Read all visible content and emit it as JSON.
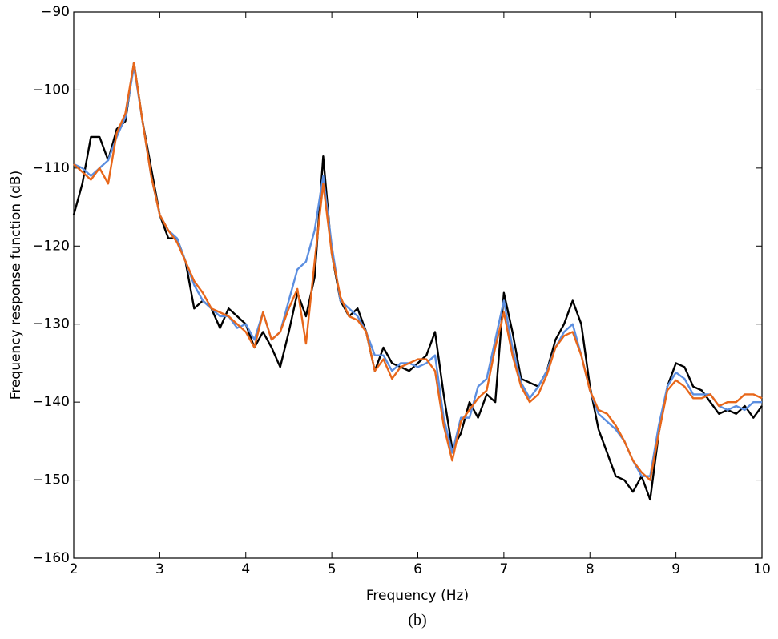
{
  "chart_data": {
    "type": "line",
    "xlabel": "Frequency (Hz)",
    "ylabel": "Frequency response function (dB)",
    "caption": "(b)",
    "x": [
      2.0,
      2.1,
      2.2,
      2.3,
      2.4,
      2.5,
      2.6,
      2.7,
      2.8,
      2.9,
      3.0,
      3.1,
      3.2,
      3.3,
      3.4,
      3.5,
      3.6,
      3.7,
      3.8,
      3.9,
      4.0,
      4.1,
      4.2,
      4.3,
      4.4,
      4.5,
      4.6,
      4.7,
      4.8,
      4.9,
      5.0,
      5.1,
      5.2,
      5.3,
      5.4,
      5.5,
      5.6,
      5.7,
      5.8,
      5.9,
      6.0,
      6.1,
      6.2,
      6.3,
      6.4,
      6.5,
      6.6,
      6.7,
      6.8,
      6.9,
      7.0,
      7.1,
      7.2,
      7.3,
      7.4,
      7.5,
      7.6,
      7.7,
      7.8,
      7.9,
      8.0,
      8.1,
      8.2,
      8.3,
      8.4,
      8.5,
      8.6,
      8.7,
      8.8,
      8.9,
      9.0,
      9.1,
      9.2,
      9.3,
      9.4,
      9.5,
      9.6,
      9.7,
      9.8,
      9.9,
      10.0
    ],
    "series": [
      {
        "color": "#000000",
        "values": [
          -116,
          -112,
          -106,
          -106,
          -109,
          -105,
          -104,
          -96.5,
          -104,
          -110,
          -116,
          -119,
          -119,
          -122,
          -128,
          -127,
          -128,
          -130.5,
          -128,
          -129,
          -130,
          -133,
          -131,
          -133,
          -135.5,
          -131,
          -126,
          -129,
          -124,
          -108.5,
          -121,
          -127,
          -129,
          -128,
          -131,
          -136,
          -133,
          -135,
          -135.5,
          -136,
          -135,
          -134,
          -131,
          -139,
          -146,
          -144,
          -140,
          -142,
          -139,
          -140,
          -126,
          -131,
          -137,
          -137.5,
          -138,
          -136,
          -132,
          -130,
          -127,
          -130,
          -138,
          -143.5,
          -146.5,
          -149.5,
          -150,
          -151.5,
          -149.5,
          -152.5,
          -144,
          -138,
          -135,
          -135.5,
          -138,
          -138.5,
          -140,
          -141.5,
          -141,
          -141.5,
          -140.5,
          -142,
          -140.5
        ]
      },
      {
        "color": "#5b8ee0",
        "values": [
          -109.5,
          -110,
          -111,
          -110,
          -109,
          -106,
          -103.5,
          -97,
          -104,
          -111,
          -116,
          -118,
          -119,
          -122,
          -125,
          -127,
          -128,
          -129,
          -129,
          -130.5,
          -130,
          -132,
          -128.5,
          -132,
          -131,
          -127,
          -123,
          -122,
          -118,
          -111,
          -120,
          -127,
          -128,
          -129,
          -131,
          -134,
          -134,
          -136,
          -135,
          -135,
          -135.5,
          -135,
          -134,
          -142,
          -146.5,
          -142,
          -142,
          -138,
          -137,
          -132,
          -127,
          -133,
          -137.5,
          -139.5,
          -138,
          -136,
          -133,
          -131,
          -130,
          -134,
          -138.5,
          -141.5,
          -142.5,
          -143.5,
          -145,
          -147.5,
          -149.5,
          -149.5,
          -143,
          -138,
          -136.2,
          -137,
          -139,
          -139,
          -139,
          -140.5,
          -141,
          -140.5,
          -141,
          -140,
          -140
        ]
      },
      {
        "color": "#e8671a",
        "values": [
          -109.5,
          -110.5,
          -111.5,
          -110,
          -112,
          -105.5,
          -103,
          -96.5,
          -104,
          -111,
          -116,
          -118,
          -119.5,
          -122,
          -124.5,
          -126,
          -128,
          -128.5,
          -129,
          -130,
          -131,
          -133,
          -128.5,
          -132,
          -131,
          -128,
          -125.5,
          -132.5,
          -122,
          -112,
          -121,
          -126.5,
          -129,
          -129.5,
          -131,
          -136,
          -134.5,
          -137,
          -135.5,
          -135,
          -134.5,
          -134.5,
          -136,
          -143,
          -147.5,
          -142.5,
          -141,
          -139.5,
          -138.5,
          -133,
          -128.5,
          -134,
          -138,
          -140,
          -139,
          -136.5,
          -133,
          -131.5,
          -131,
          -134,
          -138.5,
          -141,
          -141.5,
          -143,
          -145,
          -147.5,
          -149,
          -150,
          -144,
          -138.5,
          -137.2,
          -138,
          -139.5,
          -139.5,
          -139,
          -140.5,
          -140,
          -140,
          -139,
          -139,
          -139.5
        ]
      }
    ],
    "xlim": [
      2,
      10
    ],
    "xticks": [
      2,
      3,
      4,
      5,
      6,
      7,
      8,
      9,
      10
    ],
    "ylim": [
      -160,
      -90
    ],
    "yticks": [
      {
        "value": -90,
        "label": "−90"
      },
      {
        "value": -100,
        "label": "−100"
      },
      {
        "value": -110,
        "label": "−110"
      },
      {
        "value": -120,
        "label": "−120"
      },
      {
        "value": -130,
        "label": "−130"
      },
      {
        "value": -140,
        "label": "−140"
      },
      {
        "value": -150,
        "label": "−150"
      },
      {
        "value": -160,
        "label": "−160"
      }
    ],
    "grid": false
  }
}
